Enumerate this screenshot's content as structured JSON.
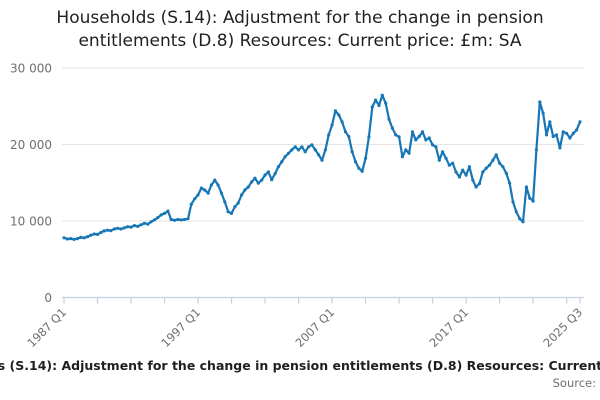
{
  "header": {
    "title": "Households (S.14): Adjustment for the change in pension entitlements (D.8) Resources: Current price: £m: SA"
  },
  "footer": {
    "caption_visible": "s (S.14): Adjustment for the change in pension entitlements (D.8) Resources: Current",
    "source_label": "Source:"
  },
  "colors": {
    "line": "#1776b6",
    "axis": "#c5cee5",
    "grid": "#e4e4e4",
    "tick_text": "#6f6f6f",
    "title_text": "#1f1f1f"
  },
  "chart_data": {
    "type": "line",
    "title": "Households (S.14): Adjustment for the change in pension entitlements (D.8) Resources: Current price: £m: SA",
    "unit": "£m",
    "x_frequency": "quarterly",
    "x_start": "1987 Q1",
    "x_end": "2025 Q3",
    "x_tick_labels": [
      {
        "index": 0,
        "label": "1987 Q1"
      },
      {
        "index": 40,
        "label": "1997 Q1"
      },
      {
        "index": 80,
        "label": "2007 Q1"
      },
      {
        "index": 120,
        "label": "2017 Q1"
      },
      {
        "index": 154,
        "label": "2025 Q3"
      }
    ],
    "minor_tick_every_quarters": 10,
    "ylim": [
      0,
      30000
    ],
    "y_ticks": [
      {
        "value": 0,
        "label": "0"
      },
      {
        "value": 10000,
        "label": "10 000"
      },
      {
        "value": 20000,
        "label": "20 000"
      },
      {
        "value": 30000,
        "label": "30 000"
      }
    ],
    "grid": "horizontal",
    "legend": "none",
    "values": [
      7800,
      7650,
      7700,
      7600,
      7700,
      7850,
      7800,
      7950,
      8150,
      8300,
      8250,
      8500,
      8700,
      8800,
      8750,
      8950,
      9050,
      8950,
      9100,
      9250,
      9200,
      9400,
      9300,
      9500,
      9700,
      9600,
      9900,
      10150,
      10450,
      10800,
      11000,
      11300,
      10200,
      10100,
      10200,
      10150,
      10200,
      10300,
      12200,
      12900,
      13400,
      14300,
      14050,
      13650,
      14700,
      15350,
      14700,
      13650,
      12500,
      11200,
      11000,
      11850,
      12350,
      13400,
      14050,
      14450,
      15100,
      15600,
      14950,
      15350,
      16000,
      16400,
      15400,
      16200,
      17100,
      17750,
      18400,
      18850,
      19300,
      19700,
      19300,
      19700,
      19050,
      19700,
      19950,
      19300,
      18650,
      17950,
      19300,
      21250,
      22550,
      24400,
      23850,
      22950,
      21650,
      21050,
      19050,
      17750,
      16900,
      16500,
      18200,
      21000,
      24900,
      25800,
      25100,
      26450,
      25400,
      23300,
      22150,
      21250,
      21000,
      18400,
      19300,
      18850,
      21650,
      20600,
      21050,
      21650,
      20600,
      20850,
      19950,
      19700,
      17950,
      19050,
      18200,
      17300,
      17550,
      16400,
      15750,
      16650,
      16000,
      17100,
      15350,
      14450,
      14900,
      16400,
      16900,
      17300,
      17950,
      18650,
      17550,
      17100,
      16250,
      14950,
      12500,
      11200,
      10300,
      9900,
      14450,
      13000,
      12600,
      19300,
      25550,
      24100,
      21250,
      22950,
      21050,
      21250,
      19550,
      21650,
      21450,
      20850,
      21450,
      21900,
      22950
    ]
  }
}
